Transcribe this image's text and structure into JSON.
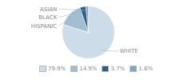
{
  "chart_data": {
    "type": "pie",
    "categories": [
      "WHITE",
      "HISPANIC",
      "BLACK",
      "ASIAN"
    ],
    "values": [
      79.9,
      14.9,
      3.7,
      1.6
    ],
    "value_labels": [
      "79.9%",
      "14.9%",
      "3.7%",
      "1.6%"
    ],
    "colors": [
      "#ccdce8",
      "#a0bfd0",
      "#2e5f8a",
      "#7fa8c0"
    ],
    "legend": "bottom"
  }
}
